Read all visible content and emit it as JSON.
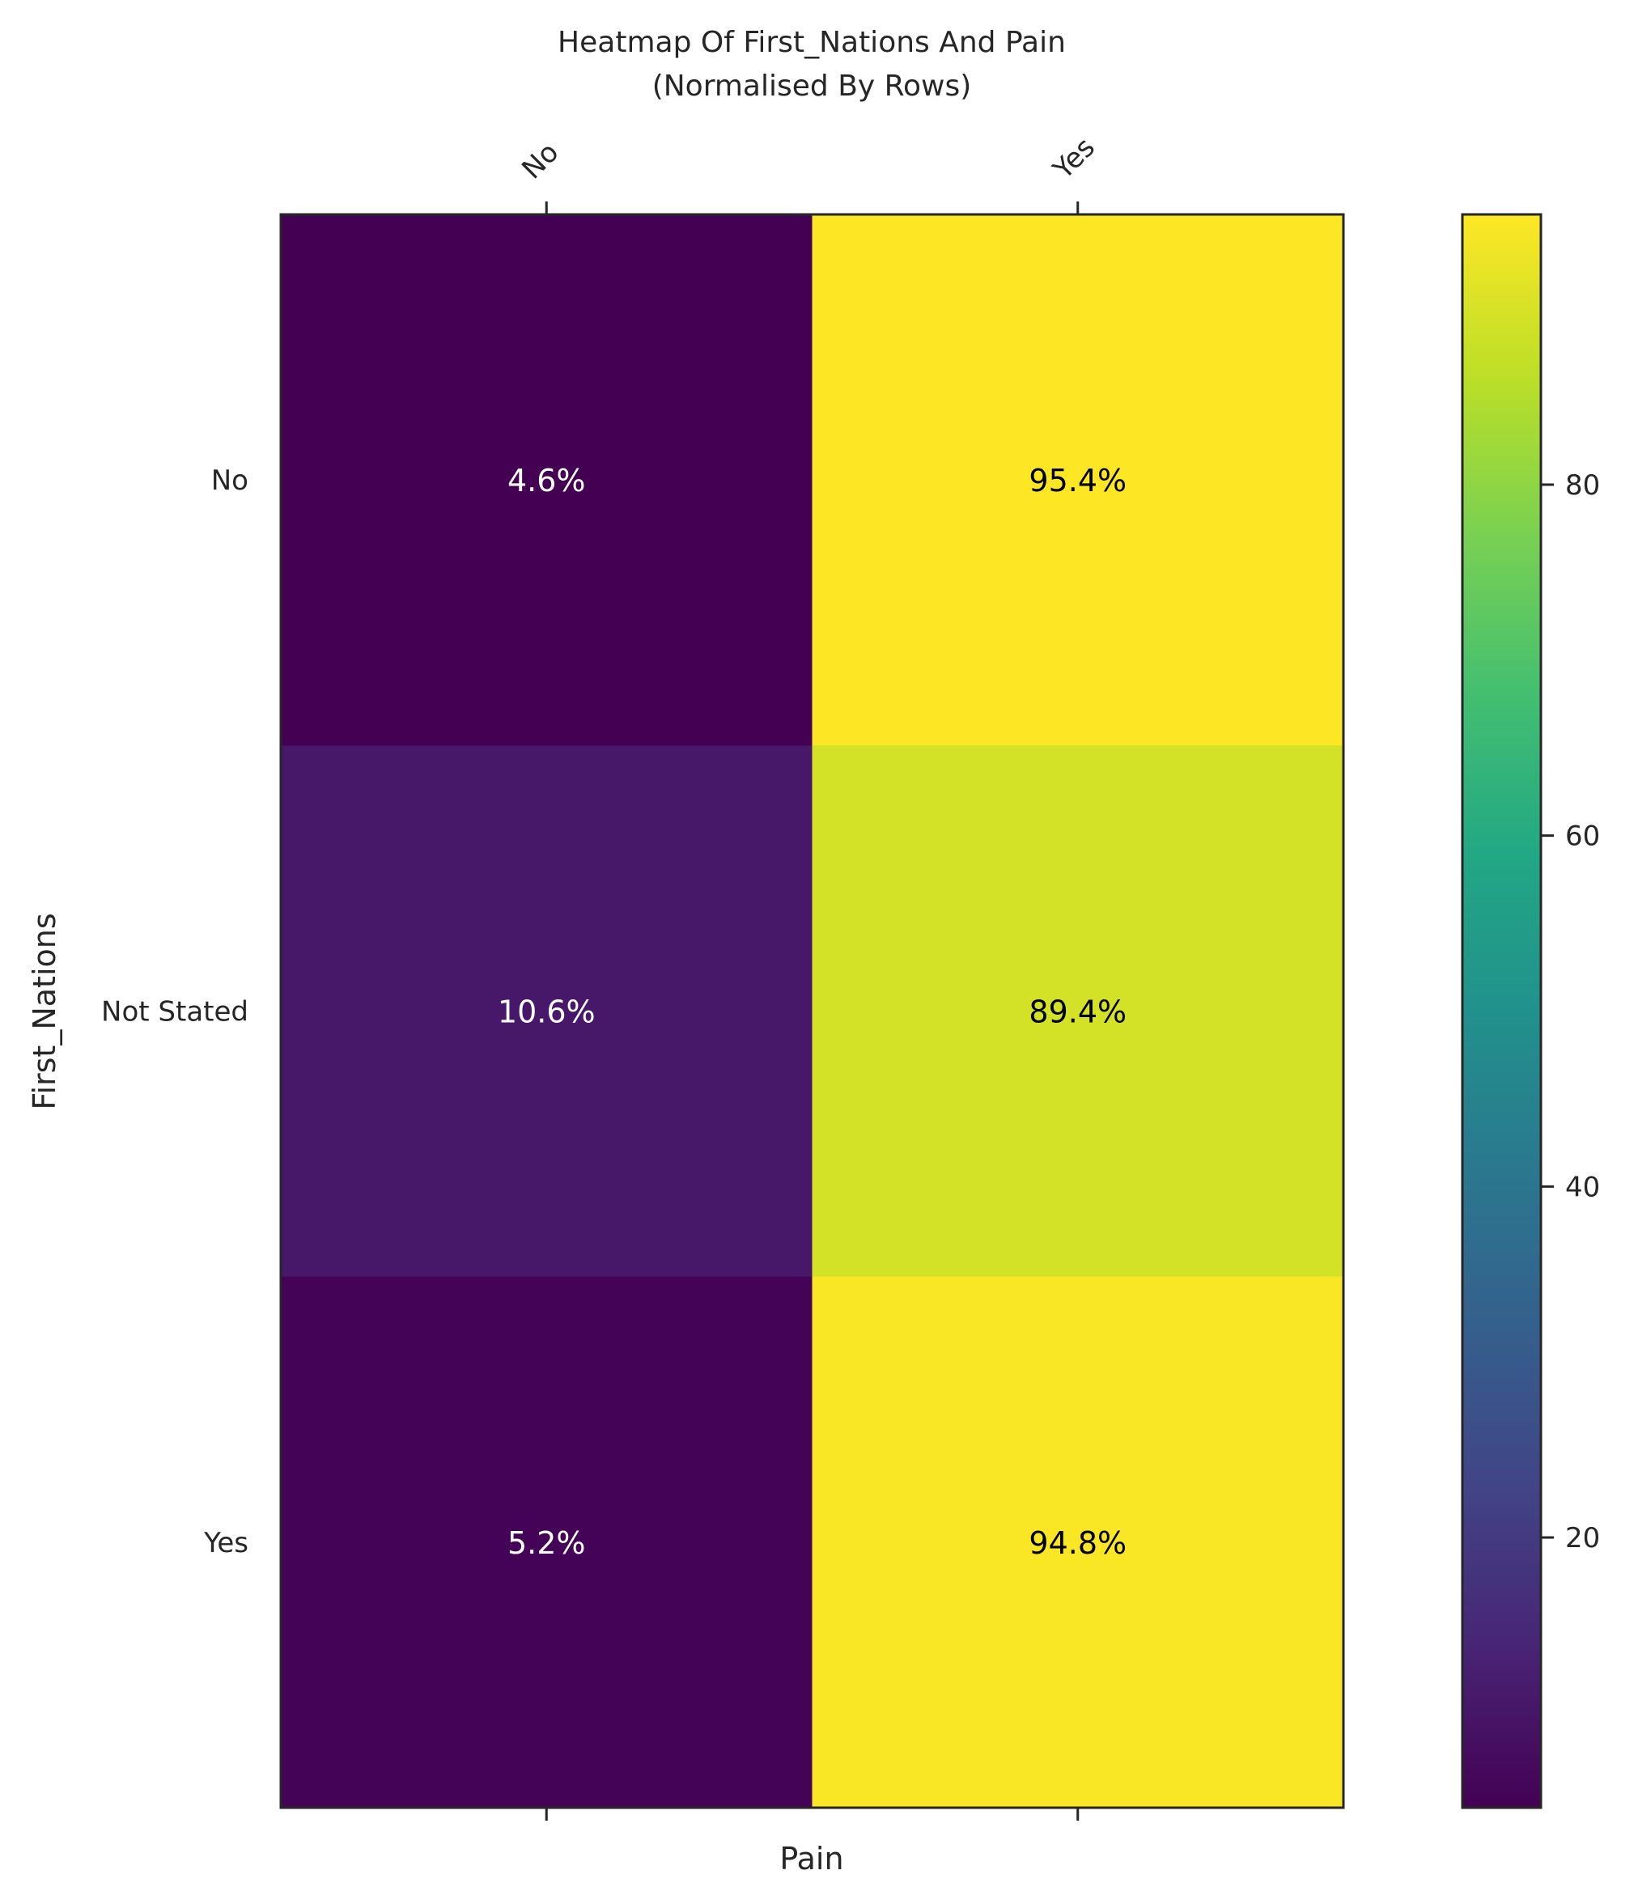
{
  "chart_data": {
    "type": "heatmap",
    "title_line1": "Heatmap Of First_Nations And Pain",
    "title_line2": "(Normalised By Rows)",
    "xlabel": "Pain",
    "ylabel": "First_Nations",
    "x_categories": [
      "No",
      "Yes"
    ],
    "y_categories": [
      "No",
      "Not Stated",
      "Yes"
    ],
    "values": [
      [
        4.6,
        95.4
      ],
      [
        10.6,
        89.4
      ],
      [
        5.2,
        94.8
      ]
    ],
    "value_labels": [
      [
        "4.6%",
        "95.4%"
      ],
      [
        "10.6%",
        "89.4%"
      ],
      [
        "5.2%",
        "94.8%"
      ]
    ],
    "colorbar": {
      "colormap": "viridis",
      "vmin": 4.6,
      "vmax": 95.4,
      "ticks": [
        20,
        40,
        60,
        80
      ],
      "tick_labels": [
        "20",
        "40",
        "60",
        "80"
      ]
    },
    "x_tick_position": "top",
    "grid": false
  }
}
